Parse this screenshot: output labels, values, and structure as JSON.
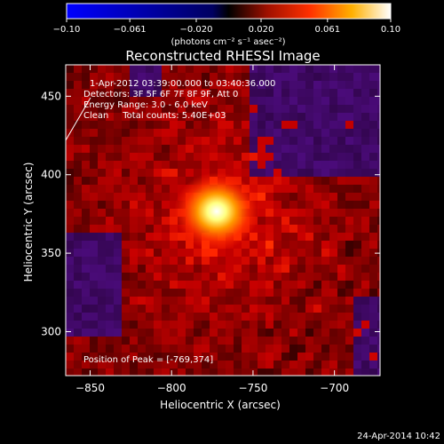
{
  "chart_data": {
    "type": "heatmap",
    "title": "Reconstructed RHESSI Image",
    "xlabel": "Heliocentric X (arcsec)",
    "ylabel": "Heliocentric Y (arcsec)",
    "xlim": [
      -865,
      -672
    ],
    "ylim": [
      272,
      470
    ],
    "x_ticks": [
      -850,
      -800,
      -750,
      -700
    ],
    "y_ticks": [
      300,
      350,
      400,
      450
    ],
    "colorbar": {
      "range": [
        -0.1,
        0.1
      ],
      "tick_values": [
        -0.1,
        -0.061,
        -0.02,
        0.02,
        0.061,
        0.1
      ],
      "tick_labels": [
        "−0.10",
        "−0.061",
        "−0.020",
        "0.020",
        "0.061",
        "0.10"
      ],
      "unit_label": "(photons cm⁻² s⁻¹ asec⁻²)"
    },
    "annotations": [
      "1-Apr-2012 03:39:00.000 to 03:40:36.000",
      "Detectors: 3F 5F 6F 7F 8F 9F, Att 0",
      "Energy Range: 3.0 - 6.0 keV",
      "Clean     Total counts: 5.40E+03"
    ],
    "peak_label": "Position of Peak = [-769,374]",
    "peak": {
      "x": -769,
      "y": 374
    },
    "grid": false,
    "colormap": [
      "#0000ff",
      "#000000",
      "#ff0000",
      "#ffff00",
      "#ffffff"
    ]
  },
  "footer": {
    "timestamp": "24-Apr-2014 10:42"
  }
}
